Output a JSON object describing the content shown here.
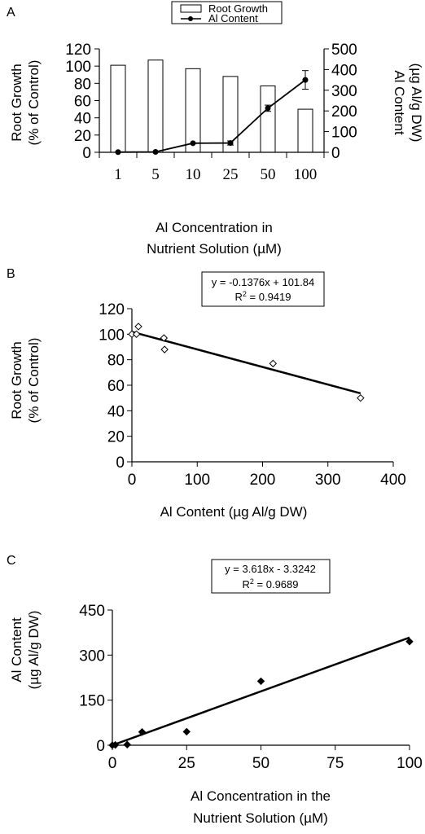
{
  "chart_data": [
    {
      "type": "bar",
      "panel": "A",
      "categories": [
        "1",
        "5",
        "10",
        "25",
        "50",
        "100"
      ],
      "series": [
        {
          "name": "Root Growth",
          "kind": "bar",
          "axis": "left",
          "values": [
            101,
            107,
            97,
            88,
            77,
            50
          ]
        },
        {
          "name": "Al Content",
          "kind": "line",
          "axis": "right",
          "values": [
            1,
            2,
            44,
            45,
            213,
            350
          ],
          "errors": [
            0,
            0,
            0,
            10,
            15,
            45
          ]
        }
      ],
      "ylabel": [
        "Root Growth",
        "(% of Control)"
      ],
      "y2label": [
        "Al Content",
        "(µg Al/g DW)"
      ],
      "xlabel": [
        "Al Concentration in",
        "Nutrient Solution (µM)"
      ],
      "ylim": [
        0,
        120
      ],
      "yticks": [
        "0",
        "20",
        "40",
        "60",
        "80",
        "100",
        "120"
      ],
      "y2lim": [
        0,
        500
      ],
      "y2ticks": [
        "0",
        "100",
        "200",
        "300",
        "400",
        "500"
      ],
      "legend": "top-center",
      "grid": false
    },
    {
      "type": "scatter",
      "panel": "B",
      "points": [
        [
          0,
          100
        ],
        [
          7,
          100
        ],
        [
          10,
          106
        ],
        [
          49,
          97
        ],
        [
          50,
          88
        ],
        [
          216,
          77
        ],
        [
          350,
          50
        ]
      ],
      "trendline": {
        "slope": -0.1376,
        "intercept": 101.84
      },
      "equation": "y = -0.1376x + 101.84",
      "r2": {
        "base": "R",
        "exp": "2",
        "rest": " = 0.9419"
      },
      "xlabel": "Al Content (µg Al/g DW)",
      "ylabel": [
        "Root Growth",
        "(% of Control)"
      ],
      "xlim": [
        0,
        400
      ],
      "xticks": [
        "0",
        "100",
        "200",
        "300",
        "400"
      ],
      "ylim": [
        0,
        120
      ],
      "yticks": [
        "0",
        "20",
        "40",
        "60",
        "80",
        "100",
        "120"
      ],
      "grid": false
    },
    {
      "type": "scatter",
      "panel": "C",
      "points": [
        [
          0,
          0
        ],
        [
          1,
          1
        ],
        [
          5,
          2
        ],
        [
          10,
          44
        ],
        [
          25,
          45
        ],
        [
          50,
          213
        ],
        [
          100,
          345
        ]
      ],
      "trendline": {
        "slope": 3.618,
        "intercept": -3.3242
      },
      "equation": "y = 3.618x - 3.3242",
      "r2": {
        "base": "R",
        "exp": "2",
        "rest": " = 0.9689"
      },
      "xlabel": [
        "Al Concentration in the",
        "Nutrient Solution (µM)"
      ],
      "ylabel": [
        "Al Content",
        "(µg Al/g DW)"
      ],
      "xlim": [
        0,
        100
      ],
      "xticks": [
        "0",
        "25",
        "50",
        "75",
        "100"
      ],
      "ylim": [
        0,
        450
      ],
      "yticks": [
        "0",
        "150",
        "300",
        "450"
      ],
      "grid": false
    }
  ]
}
